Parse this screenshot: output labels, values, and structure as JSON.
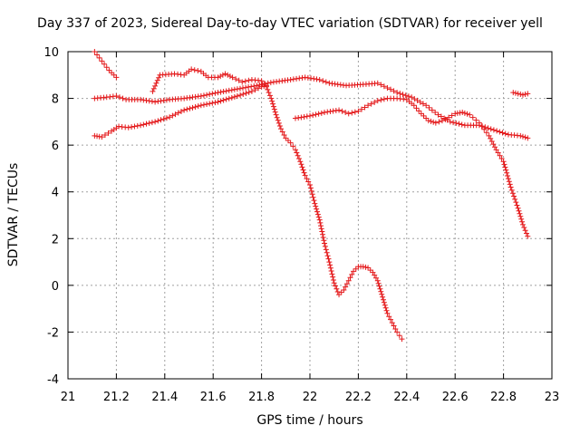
{
  "chart_data": {
    "type": "scatter",
    "title": "Day 337 of 2023, Sidereal Day-to-day VTEC variation (SDTVAR) for receiver yell",
    "xlabel": "GPS time / hours",
    "ylabel": "SDTVAR / TECUs",
    "xlim": [
      21,
      23
    ],
    "ylim": [
      -4,
      10
    ],
    "xticks": [
      "21",
      "21.2",
      "21.4",
      "21.6",
      "21.8",
      "22",
      "22.2",
      "22.4",
      "22.6",
      "22.8",
      "23"
    ],
    "yticks": [
      "-4",
      "-2",
      "0",
      "2",
      "4",
      "6",
      "8",
      "10"
    ],
    "grid": true,
    "marker": "+",
    "color": "#e41a1c",
    "series": [
      {
        "name": "sat-a",
        "points": [
          [
            21.11,
            10.0
          ],
          [
            21.14,
            9.6
          ],
          [
            21.17,
            9.2
          ],
          [
            21.2,
            8.9
          ]
        ]
      },
      {
        "name": "sat-b",
        "points": [
          [
            21.11,
            8.0
          ],
          [
            21.16,
            8.05
          ],
          [
            21.2,
            8.1
          ],
          [
            21.24,
            7.95
          ],
          [
            21.3,
            7.95
          ],
          [
            21.36,
            7.85
          ],
          [
            21.42,
            7.95
          ],
          [
            21.48,
            8.0
          ],
          [
            21.55,
            8.1
          ],
          [
            21.62,
            8.25
          ],
          [
            21.7,
            8.4
          ],
          [
            21.78,
            8.55
          ],
          [
            21.85,
            8.7
          ],
          [
            21.92,
            8.8
          ],
          [
            21.98,
            8.9
          ],
          [
            22.04,
            8.8
          ],
          [
            22.08,
            8.65
          ],
          [
            22.15,
            8.55
          ],
          [
            22.22,
            8.6
          ],
          [
            22.28,
            8.65
          ],
          [
            22.32,
            8.45
          ],
          [
            22.36,
            8.25
          ],
          [
            22.42,
            8.05
          ],
          [
            22.48,
            7.7
          ],
          [
            22.53,
            7.3
          ],
          [
            22.58,
            7.0
          ],
          [
            22.64,
            6.85
          ],
          [
            22.7,
            6.85
          ],
          [
            22.76,
            6.65
          ],
          [
            22.82,
            6.45
          ],
          [
            22.87,
            6.4
          ],
          [
            22.9,
            6.3
          ]
        ]
      },
      {
        "name": "sat-c",
        "points": [
          [
            21.11,
            6.4
          ],
          [
            21.14,
            6.35
          ],
          [
            21.18,
            6.6
          ],
          [
            21.21,
            6.8
          ],
          [
            21.25,
            6.75
          ],
          [
            21.3,
            6.85
          ],
          [
            21.36,
            7.0
          ],
          [
            21.42,
            7.2
          ],
          [
            21.48,
            7.5
          ],
          [
            21.55,
            7.7
          ],
          [
            21.62,
            7.85
          ],
          [
            21.7,
            8.1
          ],
          [
            21.76,
            8.3
          ],
          [
            21.8,
            8.5
          ],
          [
            21.82,
            8.55
          ]
        ]
      },
      {
        "name": "sat-d",
        "points": [
          [
            21.35,
            8.3
          ],
          [
            21.38,
            9.0
          ],
          [
            21.44,
            9.05
          ],
          [
            21.48,
            9.0
          ],
          [
            21.51,
            9.25
          ],
          [
            21.55,
            9.15
          ],
          [
            21.58,
            8.9
          ],
          [
            21.62,
            8.9
          ],
          [
            21.65,
            9.05
          ],
          [
            21.68,
            8.9
          ],
          [
            21.72,
            8.7
          ],
          [
            21.76,
            8.8
          ],
          [
            21.8,
            8.75
          ],
          [
            21.82,
            8.5
          ],
          [
            21.84,
            8.0
          ],
          [
            21.86,
            7.3
          ],
          [
            21.88,
            6.7
          ],
          [
            21.9,
            6.3
          ],
          [
            21.92,
            6.1
          ],
          [
            21.94,
            5.8
          ],
          [
            21.96,
            5.3
          ],
          [
            21.98,
            4.7
          ],
          [
            22.0,
            4.3
          ],
          [
            22.02,
            3.5
          ],
          [
            22.04,
            2.8
          ],
          [
            22.06,
            1.8
          ],
          [
            22.08,
            1.0
          ],
          [
            22.1,
            0.1
          ],
          [
            22.12,
            -0.4
          ],
          [
            22.14,
            -0.2
          ],
          [
            22.16,
            0.2
          ],
          [
            22.18,
            0.6
          ],
          [
            22.2,
            0.8
          ],
          [
            22.22,
            0.8
          ],
          [
            22.24,
            0.75
          ],
          [
            22.26,
            0.55
          ],
          [
            22.28,
            0.2
          ],
          [
            22.3,
            -0.5
          ],
          [
            22.32,
            -1.2
          ],
          [
            22.34,
            -1.6
          ],
          [
            22.36,
            -2.0
          ],
          [
            22.38,
            -2.3
          ]
        ]
      },
      {
        "name": "sat-e",
        "points": [
          [
            21.94,
            7.15
          ],
          [
            22.0,
            7.25
          ],
          [
            22.06,
            7.4
          ],
          [
            22.12,
            7.5
          ],
          [
            22.16,
            7.35
          ],
          [
            22.2,
            7.45
          ],
          [
            22.24,
            7.7
          ],
          [
            22.28,
            7.9
          ],
          [
            22.32,
            8.0
          ],
          [
            22.36,
            8.0
          ],
          [
            22.4,
            7.95
          ],
          [
            22.43,
            7.7
          ],
          [
            22.46,
            7.35
          ],
          [
            22.49,
            7.05
          ],
          [
            22.52,
            6.95
          ],
          [
            22.56,
            7.1
          ],
          [
            22.6,
            7.35
          ],
          [
            22.63,
            7.4
          ],
          [
            22.66,
            7.3
          ],
          [
            22.7,
            6.95
          ],
          [
            22.74,
            6.4
          ],
          [
            22.77,
            5.8
          ],
          [
            22.8,
            5.3
          ],
          [
            22.83,
            4.2
          ],
          [
            22.86,
            3.3
          ],
          [
            22.88,
            2.6
          ],
          [
            22.9,
            2.1
          ]
        ]
      },
      {
        "name": "sat-f",
        "points": [
          [
            22.84,
            8.25
          ],
          [
            22.86,
            8.2
          ],
          [
            22.88,
            8.15
          ],
          [
            22.9,
            8.2
          ]
        ]
      }
    ]
  }
}
